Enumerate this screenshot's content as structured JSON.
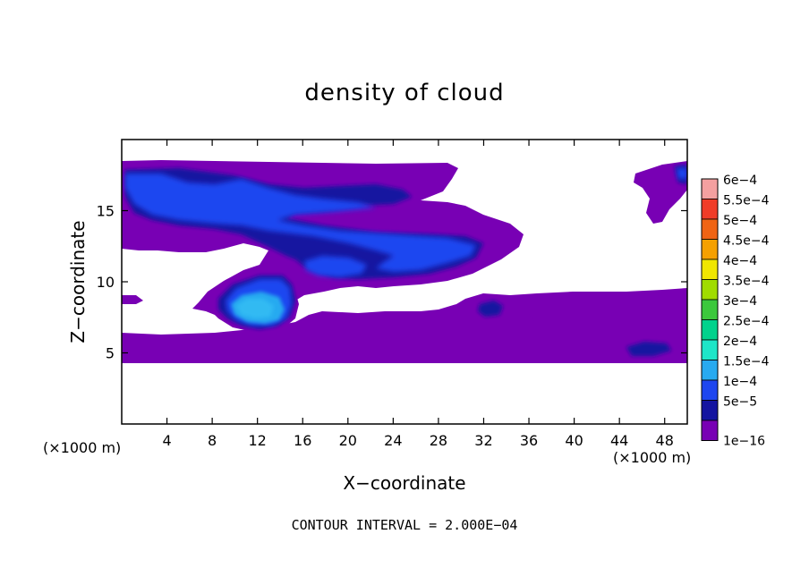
{
  "chart_data": {
    "type": "heatmap",
    "title": "density of cloud",
    "xlabel": "X−coordinate",
    "ylabel": "Z−coordinate",
    "x_unit_left": "(×1000 m)",
    "x_unit_right": "(×1000 m)",
    "footer": "CONTOUR INTERVAL = 2.000E−04",
    "xlim": [
      0,
      50
    ],
    "ylim": [
      0,
      20
    ],
    "x_ticks": [
      4,
      8,
      12,
      16,
      20,
      24,
      28,
      32,
      36,
      40,
      44,
      48
    ],
    "y_ticks": [
      5,
      10,
      15
    ],
    "x_tick_labels": [
      "4",
      "8",
      "12",
      "16",
      "20",
      "24",
      "28",
      "32",
      "36",
      "40",
      "44",
      "48"
    ],
    "y_tick_labels": [
      "5",
      "10",
      "15"
    ],
    "grid": false,
    "legend": {
      "placement": "right",
      "levels": [
        {
          "label": "6e−4",
          "color": "#f4a0a0"
        },
        {
          "label": "5.5e−4",
          "color": "#f03c28"
        },
        {
          "label": "5e−4",
          "color": "#f06414"
        },
        {
          "label": "4.5e−4",
          "color": "#f5a000"
        },
        {
          "label": "4e−4",
          "color": "#f0e600"
        },
        {
          "label": "3.5e−4",
          "color": "#a0dc00"
        },
        {
          "label": "3e−4",
          "color": "#3cc83c"
        },
        {
          "label": "2.5e−4",
          "color": "#00d28c"
        },
        {
          "label": "2e−4",
          "color": "#1ee6c8"
        },
        {
          "label": "1.5e−4",
          "color": "#28aaf0"
        },
        {
          "label": "1e−4",
          "color": "#1e46f0"
        },
        {
          "label": "5e−5",
          "color": "#1414a0"
        },
        {
          "label": "1e−16",
          "color": "#7800b4"
        }
      ]
    },
    "regions": [
      {
        "level": "1e−16",
        "x": [
          0,
          29
        ],
        "z": [
          14.5,
          18.2
        ]
      },
      {
        "level": "1e−16",
        "x": [
          0,
          50
        ],
        "z": [
          4.3,
          6.3
        ]
      },
      {
        "level": "1e−16",
        "x": [
          0,
          34
        ],
        "z": [
          12.5,
          15
        ]
      },
      {
        "level": "1e−16",
        "x": [
          27,
          35
        ],
        "z": [
          9,
          14
        ]
      },
      {
        "level": "1e−16",
        "x": [
          8,
          26
        ],
        "z": [
          6.3,
          10
        ]
      },
      {
        "level": "1e−16",
        "x": [
          30,
          50
        ],
        "z": [
          6.3,
          9
        ]
      },
      {
        "level": "1e−16",
        "x": [
          46,
          50
        ],
        "z": [
          14,
          18
        ]
      },
      {
        "level": "1e−4",
        "x": [
          0,
          9
        ],
        "z": [
          16,
          17.5
        ]
      },
      {
        "level": "1e−4",
        "x": [
          7,
          16
        ],
        "z": [
          15,
          17
        ]
      },
      {
        "level": "1e−4",
        "x": [
          15,
          31
        ],
        "z": [
          12,
          15
        ]
      },
      {
        "level": "1e−4",
        "x": [
          17,
          24
        ],
        "z": [
          10.5,
          11.5
        ]
      },
      {
        "level": "1.5e−4",
        "x": [
          9.5,
          15
        ],
        "z": [
          7.5,
          9
        ]
      }
    ]
  }
}
